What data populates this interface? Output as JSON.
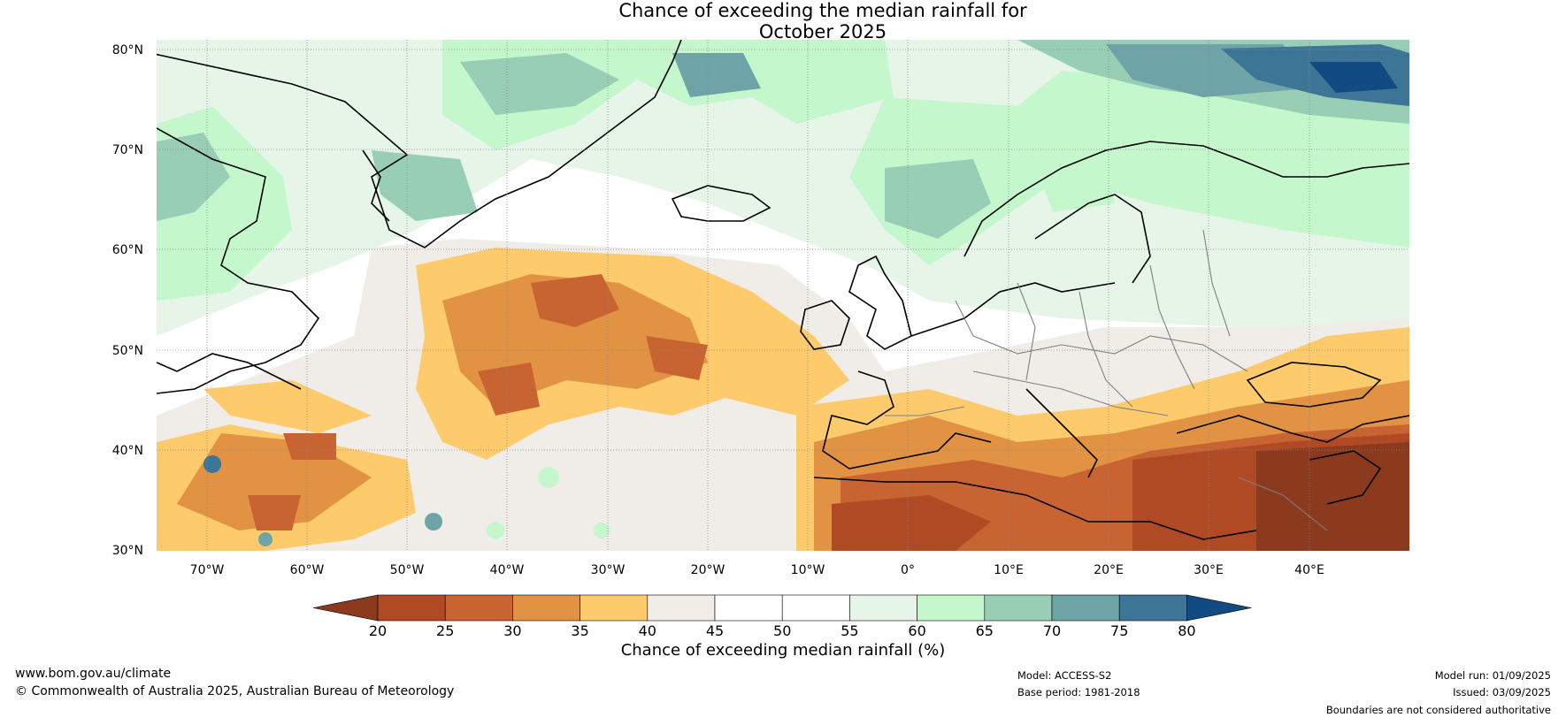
{
  "title": {
    "line1": "Chance of exceeding the median rainfall for",
    "line2": "October 2025"
  },
  "map": {
    "lat_labels": [
      "80°N",
      "70°N",
      "60°N",
      "50°N",
      "40°N",
      "30°N"
    ],
    "lon_labels": [
      "70°W",
      "60°W",
      "50°W",
      "40°W",
      "30°W",
      "20°W",
      "10°W",
      "0°",
      "10°E",
      "20°E",
      "30°E",
      "40°E"
    ],
    "extent": {
      "lon_min": -75,
      "lon_max": 50,
      "lat_min": 30,
      "lat_max": 81
    }
  },
  "colorbar": {
    "ticks": [
      "20",
      "25",
      "30",
      "35",
      "40",
      "45",
      "50",
      "55",
      "60",
      "65",
      "70",
      "75",
      "80"
    ],
    "bins": [
      {
        "range": "<20",
        "color": "#8c3a1e"
      },
      {
        "range": "20-25",
        "color": "#b04a24"
      },
      {
        "range": "25-30",
        "color": "#c86432"
      },
      {
        "range": "30-35",
        "color": "#e19242"
      },
      {
        "range": "35-40",
        "color": "#fdcb6b"
      },
      {
        "range": "40-45",
        "color": "#f0ece8"
      },
      {
        "range": "45-50",
        "color": "#ffffff"
      },
      {
        "range": "50-55",
        "color": "#ffffff"
      },
      {
        "range": "55-60",
        "color": "#e6f5e8"
      },
      {
        "range": "60-65",
        "color": "#c5f7cc"
      },
      {
        "range": "65-70",
        "color": "#98cdb6"
      },
      {
        "range": "70-75",
        "color": "#6ea3a8"
      },
      {
        "range": "75-80",
        "color": "#3d7596"
      },
      {
        "range": ">80",
        "color": "#124b82"
      }
    ],
    "label": "Chance of exceeding median rainfall (%)"
  },
  "footer": {
    "website": "www.bom.gov.au/climate",
    "copyright": "© Commonwealth of Australia 2025, Australian Bureau of Meteorology",
    "model": "Model: ACCESS-S2",
    "base_period": "Base period: 1981-2018",
    "model_run": "Model run: 01/09/2025",
    "issued": "Issued: 03/09/2025",
    "disclaimer": "Boundaries are not considered authoritative"
  }
}
